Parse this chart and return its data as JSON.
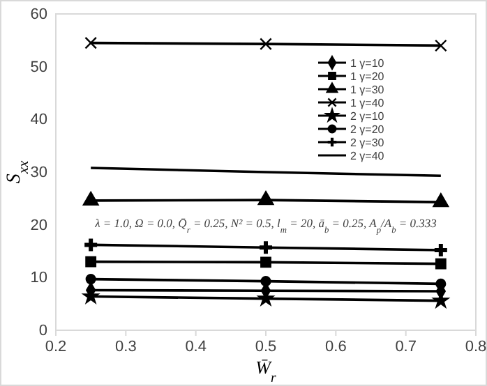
{
  "chart_data": {
    "type": "line",
    "xlabel": "W̄$_{r}$",
    "ylabel": "S$_{xx}$",
    "x": [
      0.25,
      0.5,
      0.75
    ],
    "xlim": [
      0.2,
      0.8
    ],
    "xticks": [
      0.2,
      0.3,
      0.4,
      0.5,
      0.6,
      0.7,
      0.8
    ],
    "ylim": [
      0,
      60
    ],
    "yticks": [
      0,
      10,
      20,
      30,
      40,
      50,
      60
    ],
    "grid": false,
    "legend": "top right",
    "annotations": [
      "λ = 1.0, Ω = 0.0, Q̄$_{r}$ = 0.25, N² = 0.5, l$_{m}$ = 20, ā$_{b}$ = 0.25, A$_{p}$/A$_{b}$ = 0.333"
    ],
    "series": [
      {
        "name": "1 γ=10",
        "color": "#000000",
        "marker": "diamond",
        "values": [
          7.6,
          7.5,
          7.4
        ]
      },
      {
        "name": "1 γ=20",
        "color": "#000000",
        "marker": "square",
        "values": [
          13.0,
          12.9,
          12.6
        ]
      },
      {
        "name": "1 γ=30",
        "color": "#000000",
        "marker": "triangle",
        "values": [
          24.6,
          24.7,
          24.3
        ]
      },
      {
        "name": "1 γ=40",
        "color": "#000000",
        "marker": "cross",
        "values": [
          54.5,
          54.3,
          54.0
        ]
      },
      {
        "name": "2 γ=10",
        "color": "#000000",
        "marker": "star",
        "values": [
          6.4,
          6.0,
          5.6
        ]
      },
      {
        "name": "2 γ=20",
        "color": "#000000",
        "marker": "circle",
        "values": [
          9.7,
          9.3,
          8.8
        ]
      },
      {
        "name": "2 γ=30",
        "color": "#000000",
        "marker": "plus",
        "values": [
          16.2,
          15.7,
          15.2
        ]
      },
      {
        "name": "2 γ=40",
        "color": "#000000",
        "marker": "none",
        "values": [
          30.8,
          30.0,
          29.3
        ]
      }
    ]
  }
}
